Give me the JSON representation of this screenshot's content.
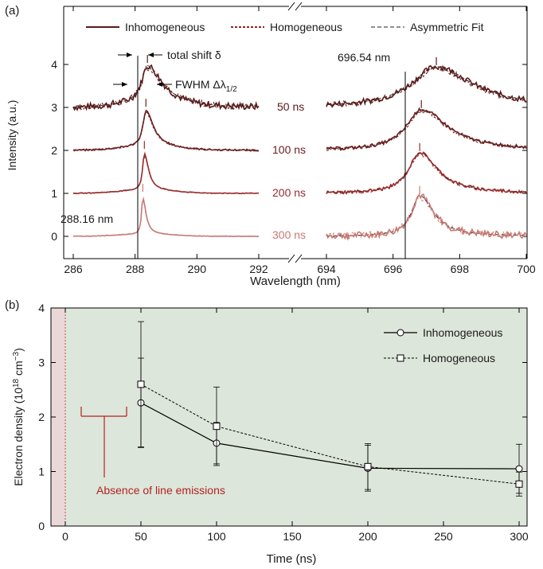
{
  "colors": {
    "dark": "#5a1a1a",
    "mid": "#8b2a2a",
    "red": "#b03030",
    "light": "#c97a74",
    "annotation": "#b22222",
    "panelB_green": "#dde6da",
    "panelB_pink": "#ead8d8"
  },
  "panel_a": {
    "label": "(a)",
    "legend": [
      "Inhomogeneous",
      "Homogeneous",
      "Asymmetric Fit"
    ],
    "ylabel": "Intensity (a.u.)",
    "xlabel": "Wavelength (nm)",
    "annotations": {
      "total_shift": "total shift δ",
      "fwhm_prefix": "FWHM Δλ",
      "fwhm_sub": "1/2",
      "line_left": "288.16 nm",
      "line_right": "696.54 nm"
    },
    "time_labels": [
      "50 ns",
      "100 ns",
      "200 ns",
      "300 ns"
    ]
  },
  "panel_b": {
    "label": "(b)",
    "annotation": "Absence of line emissions",
    "ylabel_main": "Electron density (10",
    "ylabel_exp": "18",
    "ylabel_unit": " cm",
    "ylabel_exp2": "−3",
    "ylabel_end": ")"
  },
  "chart_data": [
    {
      "type": "line",
      "title": "",
      "xlabel": "Wavelength (nm)",
      "ylabel": "Intensity (a.u.)",
      "x_segments": [
        [
          286,
          292
        ],
        [
          694,
          700
        ]
      ],
      "ylim": [
        -0.3,
        4.4
      ],
      "xticks": [
        286,
        288,
        290,
        292,
        694,
        696,
        698,
        700
      ],
      "yticks": [
        0,
        1,
        2,
        3,
        4
      ],
      "reference_lines_nm": [
        288.16,
        696.54
      ],
      "series": [
        {
          "name": "Inhomogeneous"
        },
        {
          "name": "Homogeneous"
        },
        {
          "name": "Asymmetric Fit"
        }
      ],
      "spectra": [
        {
          "time": "50 ns",
          "offset": 3,
          "left": {
            "peak_nm": 288.4,
            "amp": 1.0,
            "sigma_l": 0.22,
            "sigma_r": 0.55,
            "wing": 0.2,
            "noise": 0.08
          },
          "right": {
            "peak_nm": 697.3,
            "amp": 0.95,
            "sigma_l": 0.9,
            "sigma_r": 1.3,
            "noise": 0.07
          }
        },
        {
          "time": "100 ns",
          "offset": 2,
          "left": {
            "peak_nm": 288.35,
            "amp": 0.98,
            "sigma_l": 0.12,
            "sigma_r": 0.28,
            "wing": 0.15,
            "noise": 0.02
          },
          "right": {
            "peak_nm": 696.85,
            "amp": 0.95,
            "sigma_l": 0.55,
            "sigma_r": 0.95,
            "noise": 0.04
          }
        },
        {
          "time": "200 ns",
          "offset": 1,
          "left": {
            "peak_nm": 288.3,
            "amp": 1.0,
            "sigma_l": 0.07,
            "sigma_r": 0.16,
            "wing": 0.12,
            "noise": 0.008
          },
          "right": {
            "peak_nm": 696.8,
            "amp": 0.95,
            "sigma_l": 0.4,
            "sigma_r": 0.65,
            "noise": 0.04
          }
        },
        {
          "time": "300 ns",
          "offset": 0,
          "left": {
            "peak_nm": 288.25,
            "amp": 1.0,
            "sigma_l": 0.05,
            "sigma_r": 0.12,
            "wing": 0.08,
            "noise": 0.005
          },
          "right": {
            "peak_nm": 696.8,
            "amp": 0.95,
            "sigma_l": 0.3,
            "sigma_r": 0.5,
            "noise": 0.08
          }
        }
      ]
    },
    {
      "type": "line",
      "title": "",
      "xlabel": "Time (ns)",
      "ylabel": "Electron density (10^18 cm^-3)",
      "xlim": [
        -10,
        310
      ],
      "ylim": [
        0,
        4
      ],
      "xticks": [
        0,
        50,
        100,
        150,
        200,
        250,
        300
      ],
      "yticks": [
        0,
        1,
        2,
        3,
        4
      ],
      "legend_position": "top-right",
      "series": [
        {
          "name": "Inhomogeneous",
          "marker": "circle",
          "style": "solid",
          "x": [
            50,
            100,
            200,
            300
          ],
          "y": [
            2.26,
            1.52,
            1.06,
            1.05
          ],
          "err": [
            0.82,
            0.38,
            0.42,
            0.45
          ]
        },
        {
          "name": "Homogeneous",
          "marker": "square",
          "style": "dashed",
          "x": [
            50,
            100,
            200,
            300
          ],
          "y": [
            2.6,
            1.83,
            1.09,
            0.77
          ],
          "err": [
            1.15,
            0.72,
            0.42,
            0.22
          ]
        }
      ]
    }
  ]
}
